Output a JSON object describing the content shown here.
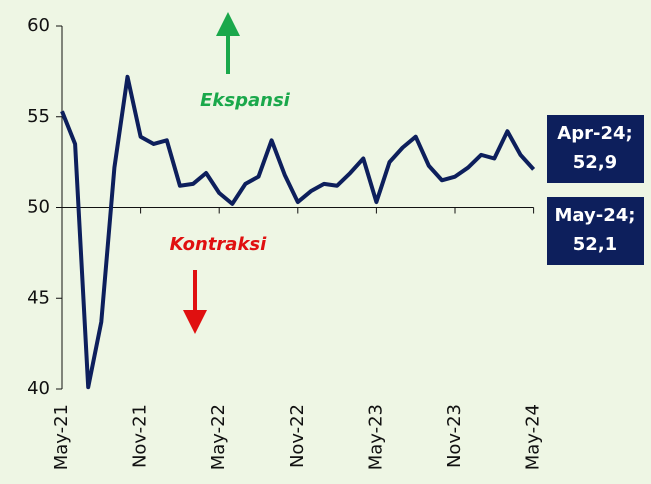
{
  "chart_data": {
    "type": "line",
    "categories": [
      "May-21",
      null,
      null,
      null,
      null,
      null,
      "Nov-21",
      null,
      null,
      null,
      null,
      null,
      "May-22",
      null,
      null,
      null,
      null,
      null,
      "Nov-22",
      null,
      null,
      null,
      null,
      null,
      "May-23",
      null,
      null,
      null,
      null,
      null,
      "Nov-23",
      null,
      null,
      null,
      null,
      null,
      "May-24"
    ],
    "series": [
      {
        "color": "#0d1f5c",
        "values": [
          55.3,
          53.5,
          40.1,
          43.7,
          52.2,
          57.2,
          53.9,
          53.5,
          53.7,
          51.2,
          51.3,
          51.9,
          50.8,
          50.2,
          51.3,
          51.7,
          53.7,
          51.8,
          50.3,
          50.9,
          51.3,
          51.2,
          51.9,
          52.7,
          50.3,
          52.5,
          53.3,
          53.9,
          52.3,
          51.5,
          51.7,
          52.2,
          52.9,
          52.7,
          54.2,
          52.9,
          52.1
        ]
      }
    ],
    "ylim": [
      40,
      60
    ],
    "yticks": [
      40,
      45,
      50,
      55,
      60
    ],
    "annotations": [
      {
        "text": "Ekspansi",
        "color": "#1aa84b"
      },
      {
        "text": "Kontraksi",
        "color": "#e01010"
      },
      {
        "lines": [
          "Apr-24;",
          "52,9"
        ],
        "color": "#0d1f5c"
      },
      {
        "lines": [
          "May-24;",
          "52,1"
        ],
        "color": "#0d1f5c"
      }
    ]
  }
}
